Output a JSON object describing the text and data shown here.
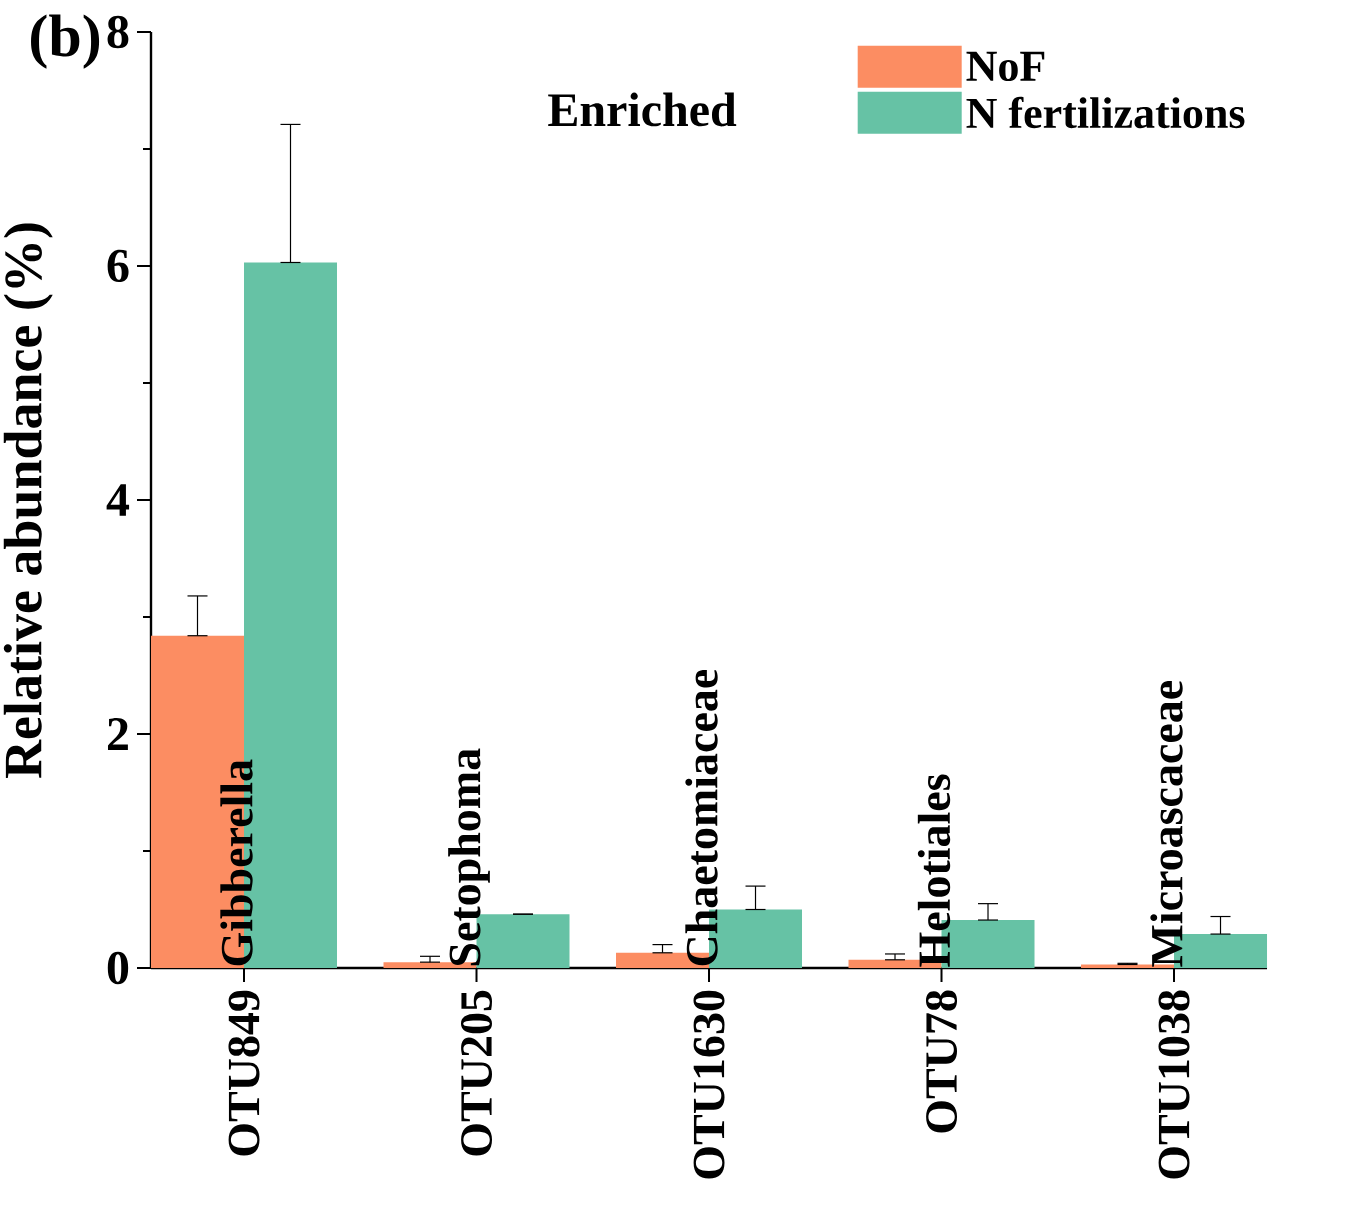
{
  "chart_data": {
    "type": "bar",
    "title": "Enriched",
    "ylabel": "Relative abundance (%)",
    "categories": [
      "OTU849",
      "OTU205",
      "OTU1630",
      "OTU78",
      "OTU1038"
    ],
    "series": [
      {
        "name": "NoF",
        "color": "#fc8d62",
        "values": [
          2.84,
          0.05,
          0.13,
          0.07,
          0.03
        ],
        "errors": [
          [
            2.84,
            3.18
          ],
          [
            0.05,
            0.1
          ],
          [
            0.13,
            0.2
          ],
          [
            0.07,
            0.12
          ],
          [
            0.03,
            0.04
          ]
        ]
      },
      {
        "name": "N fertilizations",
        "color": "#66c2a5",
        "values": [
          6.03,
          0.46,
          0.5,
          0.41,
          0.29
        ],
        "errors": [
          [
            6.03,
            7.21
          ],
          null,
          [
            0.5,
            0.7
          ],
          [
            0.41,
            0.55
          ],
          [
            0.29,
            0.44
          ]
        ]
      }
    ],
    "ylim": [
      0,
      8
    ],
    "yticks": [
      0,
      2,
      4,
      6,
      8
    ],
    "legend": "top right",
    "grid": false,
    "annotations": [
      "(b)",
      "Gibberella",
      "Setophoma",
      "Chaetomiaceae",
      "Helotiales",
      "Microascaceae"
    ]
  }
}
